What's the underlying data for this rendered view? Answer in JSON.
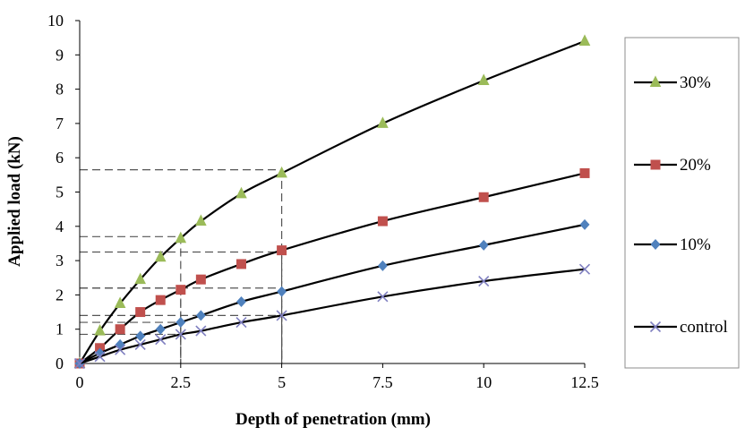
{
  "chart_data": {
    "type": "line",
    "xlabel": "Depth of penetration (mm)",
    "ylabel": "Applied load (kN)",
    "xlim": [
      0,
      12.5
    ],
    "ylim": [
      0,
      10
    ],
    "xticks": [
      "0",
      "2.5",
      "5",
      "7.5",
      "10",
      "12.5"
    ],
    "yticks": [
      "0",
      "1",
      "2",
      "3",
      "4",
      "5",
      "6",
      "7",
      "8",
      "9",
      "10"
    ],
    "grid": false,
    "legend_position": "right",
    "series": [
      {
        "name": "30%",
        "marker": "triangle",
        "color": "#9BBB59",
        "x": [
          0,
          0.5,
          1,
          1.5,
          2,
          2.5,
          3,
          4,
          5,
          7.5,
          10,
          12.5
        ],
        "y": [
          0,
          0.95,
          1.75,
          2.45,
          3.1,
          3.65,
          4.15,
          4.95,
          5.55,
          7.0,
          8.25,
          9.4
        ]
      },
      {
        "name": "20%",
        "marker": "square",
        "color": "#C0504D",
        "x": [
          0,
          0.5,
          1,
          1.5,
          2,
          2.5,
          3,
          4,
          5,
          7.5,
          10,
          12.5
        ],
        "y": [
          0,
          0.45,
          1.0,
          1.5,
          1.85,
          2.15,
          2.45,
          2.9,
          3.3,
          4.15,
          4.85,
          5.55
        ]
      },
      {
        "name": "10%",
        "marker": "diamond",
        "color": "#4F81BD",
        "x": [
          0,
          0.5,
          1,
          1.5,
          2,
          2.5,
          3,
          4,
          5,
          7.5,
          10,
          12.5
        ],
        "y": [
          0,
          0.3,
          0.55,
          0.8,
          1.0,
          1.2,
          1.4,
          1.8,
          2.1,
          2.85,
          3.45,
          4.05
        ]
      },
      {
        "name": "control",
        "marker": "x",
        "color": "#7F7FC0",
        "x": [
          0,
          0.5,
          1,
          1.5,
          2,
          2.5,
          3,
          4,
          5,
          7.5,
          10,
          12.5
        ],
        "y": [
          0,
          0.2,
          0.4,
          0.55,
          0.7,
          0.85,
          0.95,
          1.2,
          1.4,
          1.95,
          2.4,
          2.75
        ]
      }
    ],
    "reference_lines": [
      {
        "x": 2.5,
        "y": 3.7
      },
      {
        "x": 5,
        "y": 5.65
      },
      {
        "x": 2.5,
        "y": 2.2
      },
      {
        "x": 5,
        "y": 3.25
      },
      {
        "x": 2.5,
        "y": 1.2
      },
      {
        "x": 5,
        "y": 2.2
      },
      {
        "x": 2.5,
        "y": 0.85
      },
      {
        "x": 5,
        "y": 1.4
      }
    ]
  }
}
